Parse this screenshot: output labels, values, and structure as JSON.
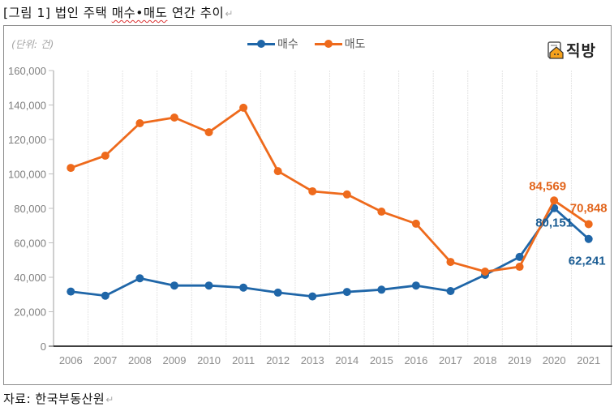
{
  "document": {
    "figure_title_prefix": "[그림 1] 법인 주택 ",
    "figure_title_underlined": "매수•매도",
    "figure_title_suffix": " 연간 추이",
    "source": "자료: 한국부동산원",
    "paragraph_mark": "↵"
  },
  "brand": {
    "name": "직방",
    "icon": "house-icon"
  },
  "colors": {
    "buy": "#1f66a8",
    "sell": "#ee6a1c",
    "buy_label": "#1a5c93",
    "sell_label": "#e2651c"
  },
  "chart_data": {
    "type": "line",
    "title": "법인 주택 매수•매도 연간 추이",
    "unit_label": "(단위: 건)",
    "xlabel": "",
    "ylabel": "",
    "categories": [
      "2006",
      "2007",
      "2008",
      "2009",
      "2010",
      "2011",
      "2012",
      "2013",
      "2014",
      "2015",
      "2016",
      "2017",
      "2018",
      "2019",
      "2020",
      "2021"
    ],
    "ylim": [
      0,
      160000
    ],
    "yticks": [
      0,
      20000,
      40000,
      60000,
      80000,
      100000,
      120000,
      140000,
      160000
    ],
    "ytick_labels": [
      "0",
      "20,000",
      "40,000",
      "60,000",
      "80,000",
      "100,000",
      "120,000",
      "140,000",
      "160,000"
    ],
    "grid": "vertical",
    "legend_position": "top-center",
    "series": [
      {
        "name": "매수",
        "values": [
          31700,
          29300,
          39400,
          35200,
          35200,
          34000,
          31100,
          28900,
          31500,
          32800,
          35200,
          32000,
          41400,
          51800,
          80151,
          62241
        ],
        "data_labels": [
          {
            "category": "2020",
            "text": "80,151"
          },
          {
            "category": "2021",
            "text": "62,241"
          }
        ]
      },
      {
        "name": "매도",
        "values": [
          103500,
          110600,
          129400,
          132700,
          124200,
          138400,
          101600,
          89900,
          88100,
          78100,
          71100,
          48900,
          43300,
          46100,
          84569,
          70848
        ],
        "data_labels": [
          {
            "category": "2020",
            "text": "84,569"
          },
          {
            "category": "2021",
            "text": "70,848"
          }
        ]
      }
    ]
  }
}
